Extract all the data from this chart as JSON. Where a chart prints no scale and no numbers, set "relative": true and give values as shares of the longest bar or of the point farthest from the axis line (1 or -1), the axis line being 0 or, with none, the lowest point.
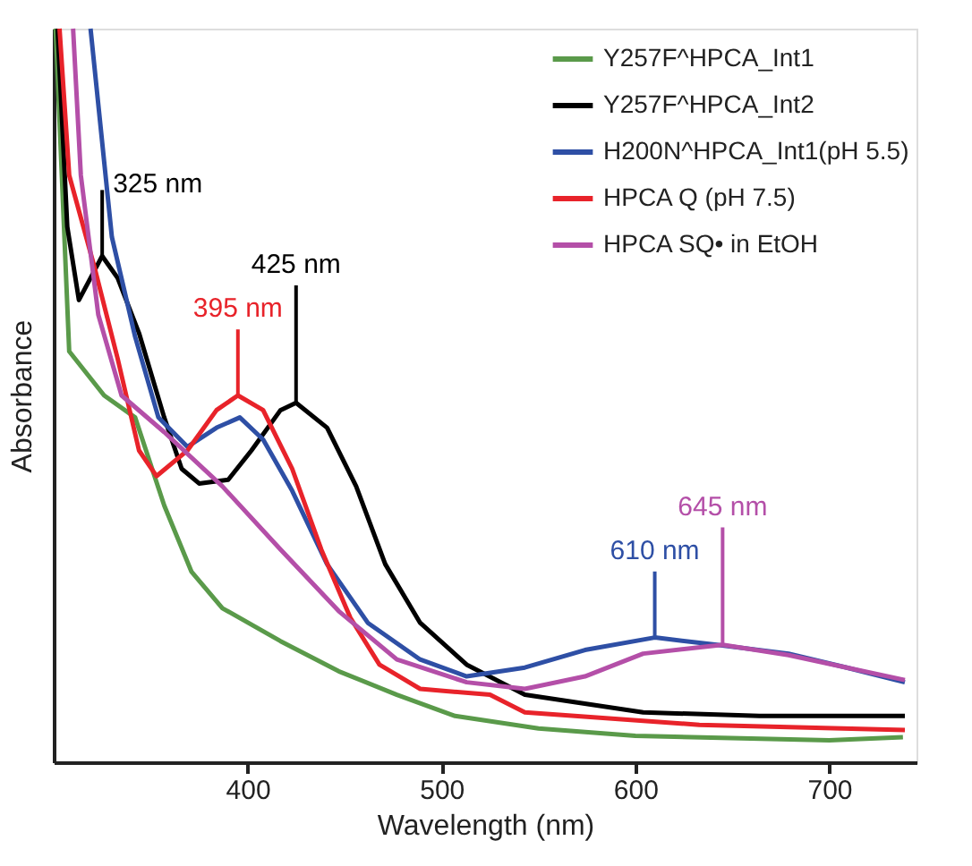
{
  "chart_data": {
    "type": "line",
    "relative": true,
    "xlabel": "Wavelength (nm)",
    "ylabel": "Absorbance",
    "xlim": [
      300,
      745
    ],
    "xticks": [
      400,
      500,
      600,
      700
    ],
    "grid": false,
    "legend": "top right",
    "marker": "none",
    "line_style": "solid",
    "series": [
      {
        "name": "Y257F^HPCA_Int1",
        "color": "#5a9a4a",
        "x": [
          301,
          308,
          326,
          342,
          357,
          371,
          387,
          417,
          447,
          477,
          507,
          550,
          600,
          700,
          738
        ],
        "values": [
          1.0,
          0.56,
          0.5,
          0.47,
          0.35,
          0.26,
          0.21,
          0.165,
          0.124,
          0.092,
          0.063,
          0.046,
          0.036,
          0.03,
          0.034
        ]
      },
      {
        "name": "Y257F^HPCA_Int2",
        "color": "#000000",
        "x": [
          302,
          307,
          313,
          325,
          333,
          344,
          357,
          366,
          375,
          390,
          402,
          417,
          425,
          441,
          456,
          471,
          489,
          513,
          543,
          604,
          664,
          739
        ],
        "values": [
          1.0,
          0.73,
          0.63,
          0.69,
          0.66,
          0.585,
          0.47,
          0.4,
          0.38,
          0.385,
          0.425,
          0.48,
          0.49,
          0.456,
          0.376,
          0.27,
          0.19,
          0.133,
          0.092,
          0.068,
          0.063,
          0.063
        ]
      },
      {
        "name": "H200N^HPCA_Int1(pH 5.5)",
        "color": "#2e4fa5",
        "x": [
          319,
          330,
          342,
          354,
          369,
          384,
          396,
          408,
          423,
          441,
          462,
          489,
          513,
          543,
          574,
          610,
          642,
          679,
          709,
          739
        ],
        "values": [
          1.0,
          0.716,
          0.58,
          0.47,
          0.43,
          0.456,
          0.47,
          0.44,
          0.37,
          0.27,
          0.19,
          0.14,
          0.117,
          0.129,
          0.153,
          0.17,
          0.16,
          0.148,
          0.129,
          0.109
        ]
      },
      {
        "name": "HPCA Q   (pH 7.5)",
        "color": "#e8232a",
        "x": [
          303,
          308,
          321,
          333,
          344,
          353,
          369,
          384,
          395,
          408,
          423,
          438,
          453,
          468,
          489,
          525,
          543,
          633,
          739
        ],
        "values": [
          1.0,
          0.8,
          0.675,
          0.55,
          0.425,
          0.39,
          0.425,
          0.48,
          0.5,
          0.48,
          0.4,
          0.29,
          0.197,
          0.133,
          0.1,
          0.092,
          0.068,
          0.051,
          0.044
        ]
      },
      {
        "name": "HPCA SQ• in EtOH",
        "color": "#b44fa8",
        "x": [
          310,
          314,
          323,
          335,
          357,
          387,
          417,
          447,
          477,
          513,
          543,
          574,
          604,
          645,
          679,
          709,
          739
        ],
        "values": [
          1.0,
          0.8,
          0.61,
          0.5,
          0.45,
          0.376,
          0.29,
          0.206,
          0.14,
          0.109,
          0.1,
          0.117,
          0.148,
          0.16,
          0.146,
          0.129,
          0.112
        ]
      }
    ],
    "annotations": [
      {
        "text": "325 nm",
        "x": 325,
        "y": 0.69
      },
      {
        "text": "395 nm",
        "x": 395,
        "y": 0.5
      },
      {
        "text": "425 nm",
        "x": 425,
        "y": 0.49
      },
      {
        "text": "610 nm",
        "x": 610,
        "y": 0.17
      },
      {
        "text": "645 nm",
        "x": 645,
        "y": 0.16
      }
    ]
  }
}
